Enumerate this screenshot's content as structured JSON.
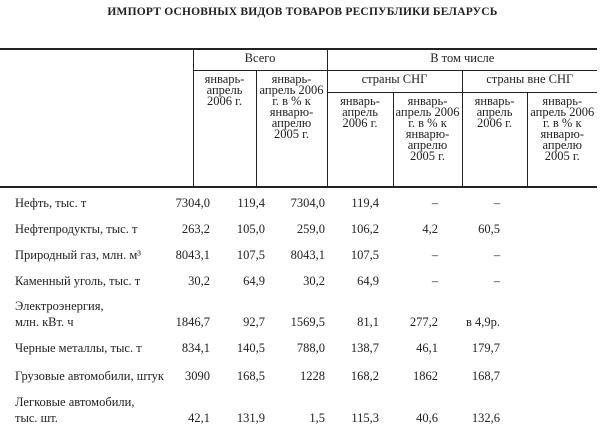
{
  "title": "ИМПОРТ ОСНОВНЫХ ВИДОВ ТОВАРОВ РЕСПУБЛИКИ БЕЛАРУСЬ",
  "header": {
    "total": "Всего",
    "including": "В том числе",
    "cis": "страны СНГ",
    "non_cis": "страны вне СНГ",
    "period": "январь-апрель 2006 г.",
    "percent": "январь-апрель 2006 г. в % к январю-апрелю 2005 г."
  },
  "rows": [
    {
      "label": [
        "Нефть, тыс. т"
      ],
      "values": [
        "7304,0",
        "119,4",
        "7304,0",
        "119,4",
        "–",
        "–"
      ]
    },
    {
      "label": [
        "Нефтепродукты, тыс. т"
      ],
      "values": [
        "263,2",
        "105,0",
        "259,0",
        "106,2",
        "4,2",
        "60,5"
      ]
    },
    {
      "label": [
        "Природный газ, млн. м³"
      ],
      "values": [
        "8043,1",
        "107,5",
        "8043,1",
        "107,5",
        "–",
        "–"
      ]
    },
    {
      "label": [
        "Каменный уголь, тыс. т"
      ],
      "values": [
        "30,2",
        "64,9",
        "30,2",
        "64,9",
        "–",
        "–"
      ]
    },
    {
      "label": [
        "Электроэнергия,",
        "млн. кВт. ч"
      ],
      "values": [
        "1846,7",
        "92,7",
        "1569,5",
        "81,1",
        "277,2",
        "в 4,9р."
      ]
    },
    {
      "label": [
        "Черные металлы, тыс. т"
      ],
      "values": [
        "834,1",
        "140,5",
        "788,0",
        "138,7",
        "46,1",
        "179,7"
      ]
    },
    {
      "label": [
        "Грузовые автомобили, штук"
      ],
      "values": [
        "3090",
        "168,5",
        "1228",
        "168,2",
        "1862",
        "168,7"
      ]
    },
    {
      "label": [
        "Легковые автомобили,",
        "тыс. шт."
      ],
      "values": [
        "42,1",
        "131,9",
        "1,5",
        "115,3",
        "40,6",
        "132,6"
      ]
    }
  ]
}
